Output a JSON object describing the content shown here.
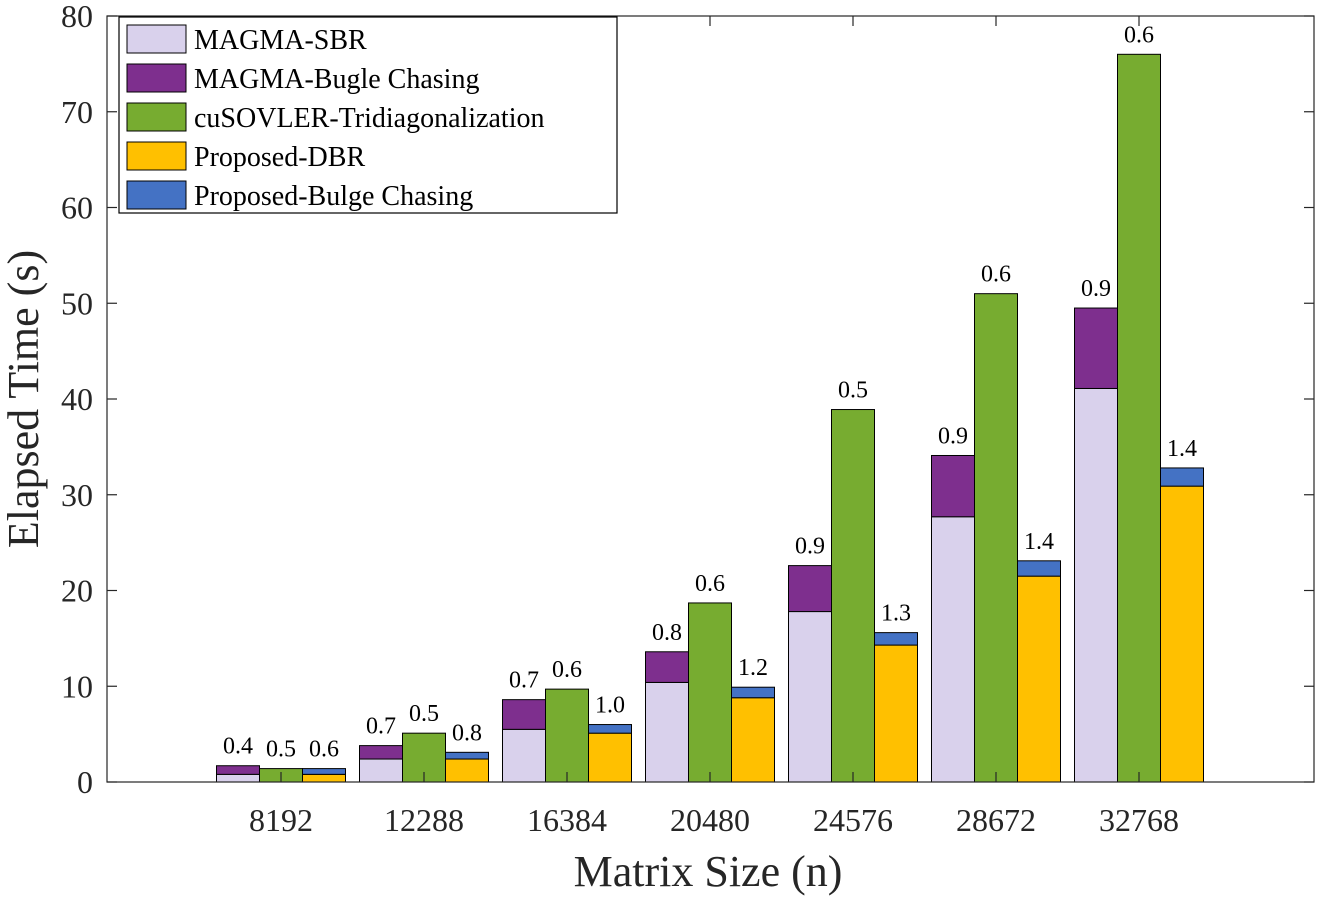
{
  "chart_data": {
    "type": "bar",
    "stacked": true,
    "grouped": true,
    "xlabel": "Matrix Size (n)",
    "ylabel": "Elapsed Time (s)",
    "ylim": [
      0,
      80
    ],
    "yticks": [
      0,
      10,
      20,
      30,
      40,
      50,
      60,
      70,
      80
    ],
    "categories": [
      "8192",
      "12288",
      "16384",
      "20480",
      "24576",
      "28672",
      "32768"
    ],
    "groups": [
      {
        "id": "magma",
        "segments": [
          {
            "name": "MAGMA-SBR",
            "color": "#d9d1ec",
            "values": [
              0.8,
              2.4,
              5.5,
              10.4,
              17.8,
              27.7,
              41.1
            ]
          },
          {
            "name": "MAGMA-Bugle Chasing",
            "color": "#7e2f8e",
            "values": [
              0.9,
              1.4,
              3.1,
              3.2,
              4.8,
              6.4,
              8.4
            ]
          }
        ],
        "labels": [
          "0.4",
          "0.7",
          "0.7",
          "0.8",
          "0.9",
          "0.9",
          "0.9"
        ]
      },
      {
        "id": "cusolver",
        "segments": [
          {
            "name": "cuSOVLER-Tridiagonalization",
            "color": "#77ac30",
            "values": [
              1.4,
              5.1,
              9.7,
              18.7,
              38.9,
              51.0,
              76.0
            ]
          }
        ],
        "labels": [
          "0.5",
          "0.5",
          "0.6",
          "0.6",
          "0.5",
          "0.6",
          "0.6"
        ]
      },
      {
        "id": "proposed",
        "segments": [
          {
            "name": "Proposed-DBR",
            "color": "#ffc000",
            "values": [
              0.8,
              2.4,
              5.1,
              8.8,
              14.3,
              21.5,
              30.9
            ]
          },
          {
            "name": "Proposed-Bulge Chasing",
            "color": "#4472c4",
            "values": [
              0.6,
              0.7,
              0.9,
              1.1,
              1.3,
              1.6,
              1.9
            ]
          }
        ],
        "labels": [
          "0.6",
          "0.8",
          "1.0",
          "1.2",
          "1.3",
          "1.4",
          "1.4"
        ]
      }
    ],
    "legend": {
      "placement": "top-left",
      "entries": [
        {
          "name": "MAGMA-SBR",
          "color": "#d9d1ec"
        },
        {
          "name": "MAGMA-Bugle Chasing",
          "color": "#7e2f8e"
        },
        {
          "name": "cuSOVLER-Tridiagonalization",
          "color": "#77ac30"
        },
        {
          "name": "Proposed-DBR",
          "color": "#ffc000"
        },
        {
          "name": "Proposed-Bulge Chasing",
          "color": "#4472c4"
        }
      ]
    },
    "grid": false
  }
}
